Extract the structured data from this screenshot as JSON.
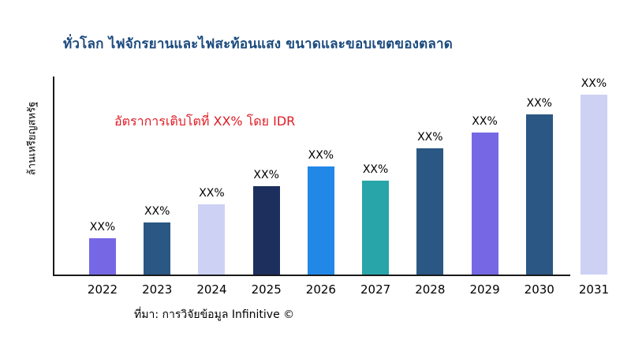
{
  "chart_data": {
    "type": "bar",
    "title": "ทั่วโลก ไฟจักรยานและไฟสะท้อนแสง ขนาดและขอบเขตของตลาด",
    "title_color": "#1b4a7e",
    "categories": [
      "2022",
      "2023",
      "2024",
      "2025",
      "2026",
      "2027",
      "2028",
      "2029",
      "2030",
      "2031"
    ],
    "values": [
      20,
      29,
      39,
      49,
      60,
      52,
      70,
      79,
      89,
      100
    ],
    "value_note": "Values are relative bar heights (0-100); actual data labels are masked as XX% in the image",
    "bar_labels": [
      "XX%",
      "XX%",
      "XX%",
      "XX%",
      "XX%",
      "XX%",
      "XX%",
      "XX%",
      "XX%",
      "XX%"
    ],
    "bar_colors": [
      "#7668e5",
      "#2a5783",
      "#cdd1f4",
      "#1d2f5d",
      "#2188e8",
      "#28a5a9",
      "#2a5783",
      "#7668e5",
      "#2a5783",
      "#cdd1f4"
    ],
    "xlabel": "",
    "ylabel": "ล้านเหรียญสหรัฐ",
    "ylim": [
      0,
      100
    ],
    "grid": false,
    "legend": false,
    "annotation": "อัตราการเติบโตที่ XX% โดย IDR",
    "annotation_color": "#e01b24",
    "source": "ที่มา: การวิจัยข้อมูล Infinitive ©"
  }
}
